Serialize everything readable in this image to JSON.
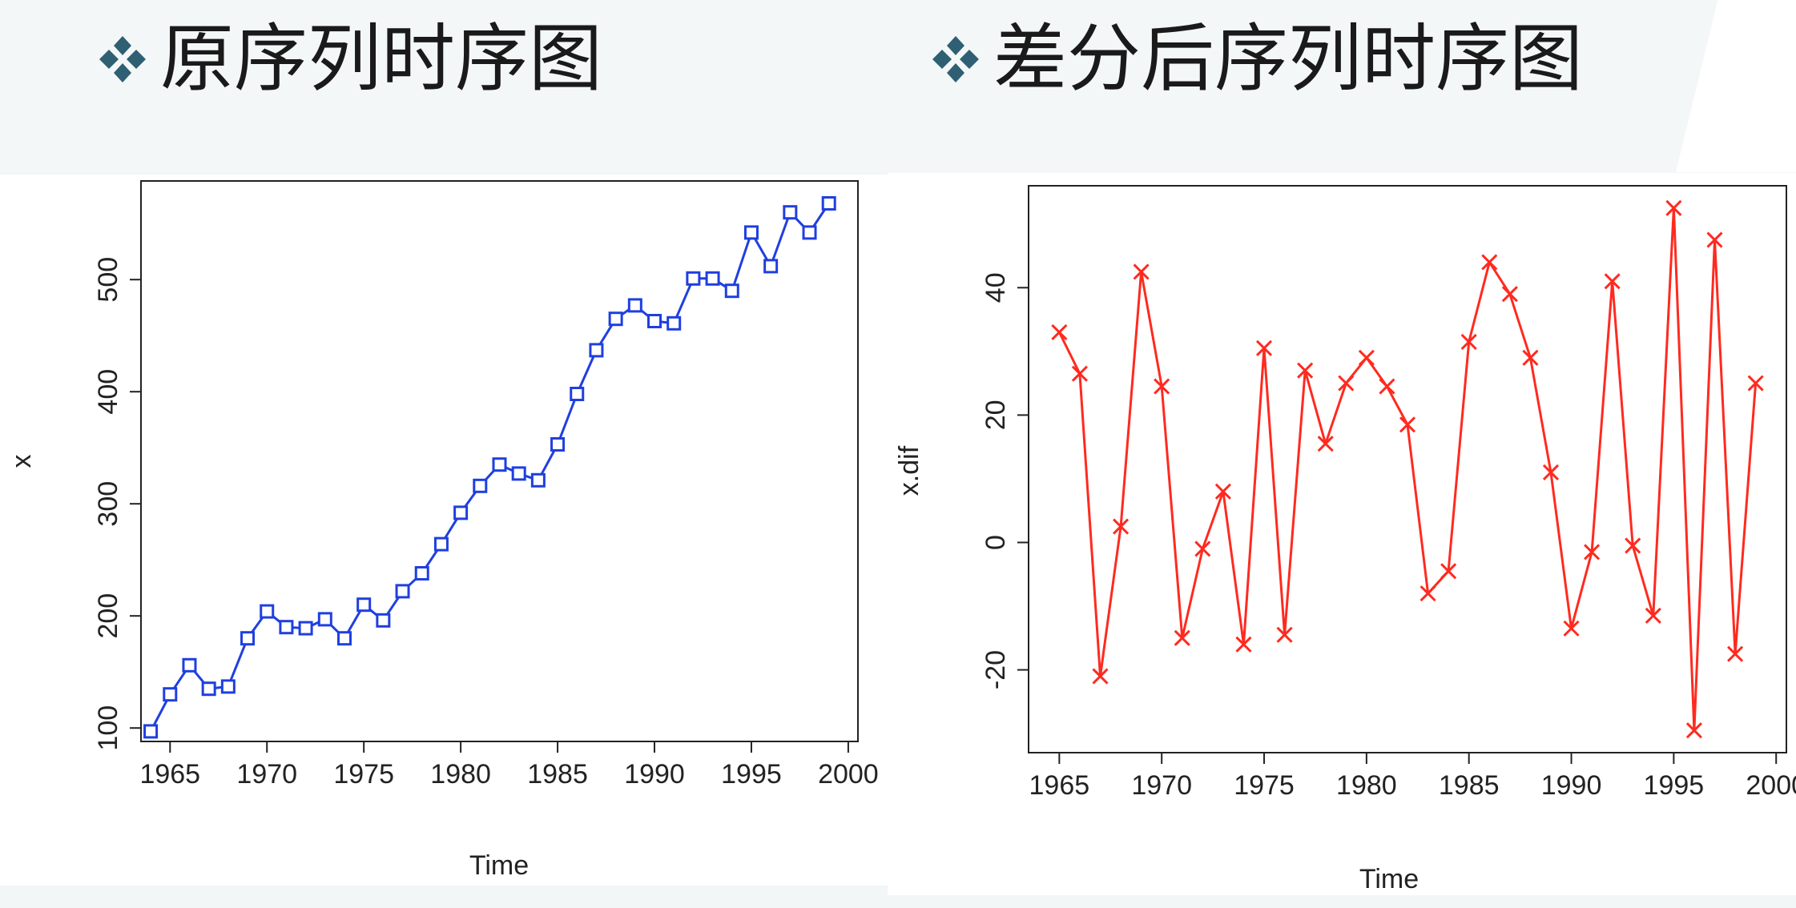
{
  "slide": {
    "title_left": "原序列时序图",
    "title_right": "差分后序列时序图",
    "bullet_icon": "diamond-cluster-icon",
    "bullet_color": "#2f5f73"
  },
  "chart_data": [
    {
      "type": "line",
      "markers": "square",
      "color": "#1f3fe0",
      "title": "",
      "xlabel": "Time",
      "ylabel": "x",
      "xlim": [
        1963.5,
        2000.5
      ],
      "ylim": [
        88,
        588
      ],
      "xticks": [
        1965,
        1970,
        1975,
        1980,
        1985,
        1990,
        1995,
        2000
      ],
      "yticks": [
        100,
        200,
        300,
        400,
        500
      ],
      "x": [
        1964,
        1965,
        1966,
        1967,
        1968,
        1969,
        1970,
        1971,
        1972,
        1973,
        1974,
        1975,
        1976,
        1977,
        1978,
        1979,
        1980,
        1981,
        1982,
        1983,
        1984,
        1985,
        1986,
        1987,
        1988,
        1989,
        1990,
        1991,
        1992,
        1993,
        1994,
        1995,
        1996,
        1997,
        1998,
        1999
      ],
      "y": [
        97,
        130,
        156,
        135,
        137,
        180,
        204,
        190,
        189,
        197,
        180,
        210,
        196,
        222,
        238,
        264,
        292,
        316,
        335,
        327,
        321,
        353,
        398,
        437,
        465,
        477,
        463,
        461,
        501,
        501,
        490,
        542,
        512,
        560,
        542,
        568
      ]
    },
    {
      "type": "line",
      "markers": "x",
      "color": "#ff2a1f",
      "title": "",
      "xlabel": "Time",
      "ylabel": "x.dif",
      "xlim": [
        1963.5,
        2000.5
      ],
      "ylim": [
        -33,
        56
      ],
      "xticks": [
        1965,
        1970,
        1975,
        1980,
        1985,
        1990,
        1995,
        2000
      ],
      "yticks": [
        -20,
        0,
        20,
        40
      ],
      "x": [
        1965,
        1966,
        1967,
        1968,
        1969,
        1970,
        1971,
        1972,
        1973,
        1974,
        1975,
        1976,
        1977,
        1978,
        1979,
        1980,
        1981,
        1982,
        1983,
        1984,
        1985,
        1986,
        1987,
        1988,
        1989,
        1990,
        1991,
        1992,
        1993,
        1994,
        1995,
        1996,
        1997,
        1998,
        1999
      ],
      "y": [
        33,
        26.5,
        -21,
        2.5,
        42.5,
        24.5,
        -15,
        -1,
        8,
        -16,
        30.5,
        -14.5,
        27,
        15.5,
        25,
        29,
        24.5,
        18.5,
        -8,
        -4.5,
        31.5,
        44,
        39,
        29,
        11,
        -13.5,
        -1.5,
        41,
        -0.5,
        -11.5,
        52.5,
        -29.5,
        47.5,
        -17.5,
        25
      ]
    }
  ]
}
